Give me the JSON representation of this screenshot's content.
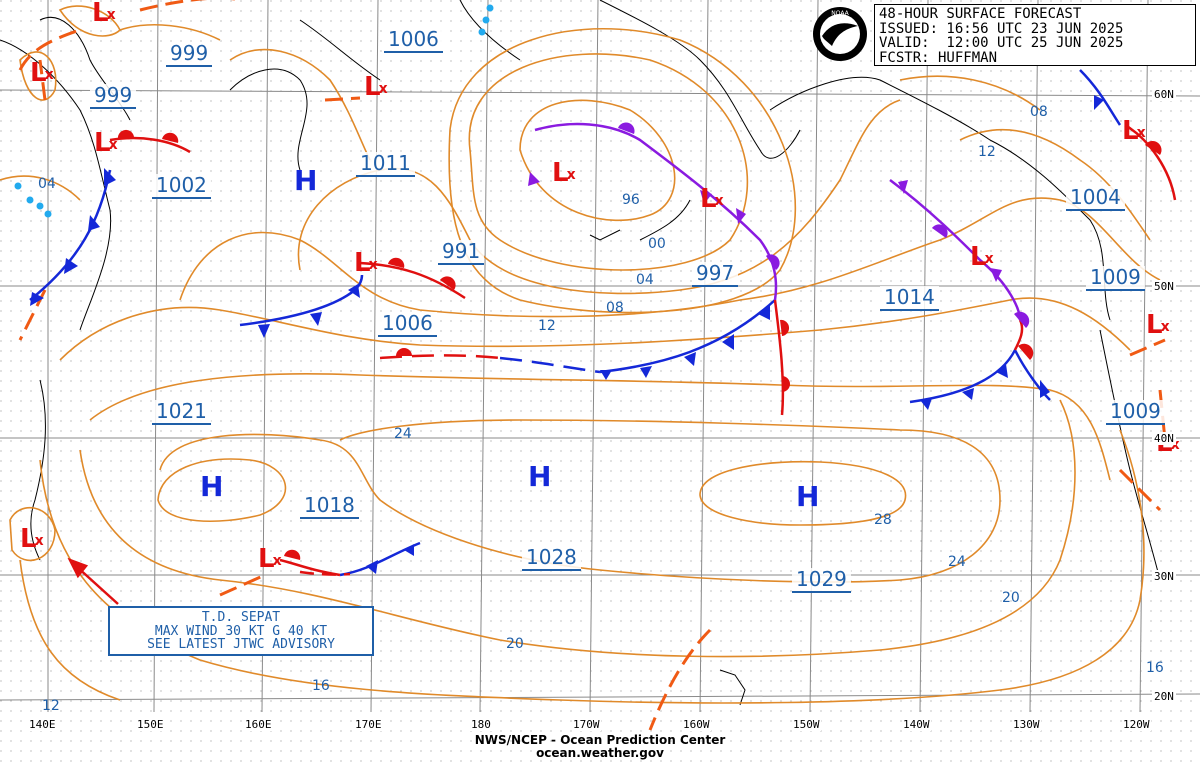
{
  "header": {
    "line1": "48-HOUR SURFACE FORECAST",
    "line2": "ISSUED: 16:56 UTC 23 JUN 2025",
    "line3": "VALID:  12:00 UTC 25 JUN 2025",
    "line4": "FCSTR: HUFFMAN",
    "logo_text": "NOAA"
  },
  "footer": {
    "line1": "NWS/NCEP - Ocean Prediction Center",
    "line2": "ocean.weather.gov"
  },
  "advisory": {
    "line1": "T.D. SEPAT",
    "line2": "MAX WIND 30 KT G 40 KT",
    "line3": "SEE LATEST JTWC ADVISORY"
  },
  "longitude_labels": [
    "140E",
    "150E",
    "160E",
    "170E",
    "180",
    "170W",
    "160W",
    "150W",
    "140W",
    "130W",
    "120W"
  ],
  "latitude_labels": [
    "60N",
    "50N",
    "40N",
    "30N",
    "20N"
  ],
  "pressure_centers": [
    "999",
    "999",
    "1006",
    "1002",
    "1011",
    "991",
    "997",
    "1006",
    "1014",
    "1004",
    "1009",
    "1021",
    "1018",
    "1028",
    "1029",
    "1009"
  ],
  "isobar_labels": [
    "04",
    "96",
    "00",
    "04",
    "08",
    "12",
    "08",
    "12",
    "24",
    "28",
    "24",
    "20",
    "20",
    "16",
    "16",
    "12"
  ],
  "high_symbol": "H",
  "low_symbol": "L",
  "low_mark": "x",
  "colors": {
    "isobar": "#e08a2a",
    "label": "#1f5fa8",
    "cold_front": "#1428d8",
    "warm_front": "#e01010",
    "occluded_front": "#8a1be0",
    "trough": "#f05a14",
    "land": "#000000"
  }
}
